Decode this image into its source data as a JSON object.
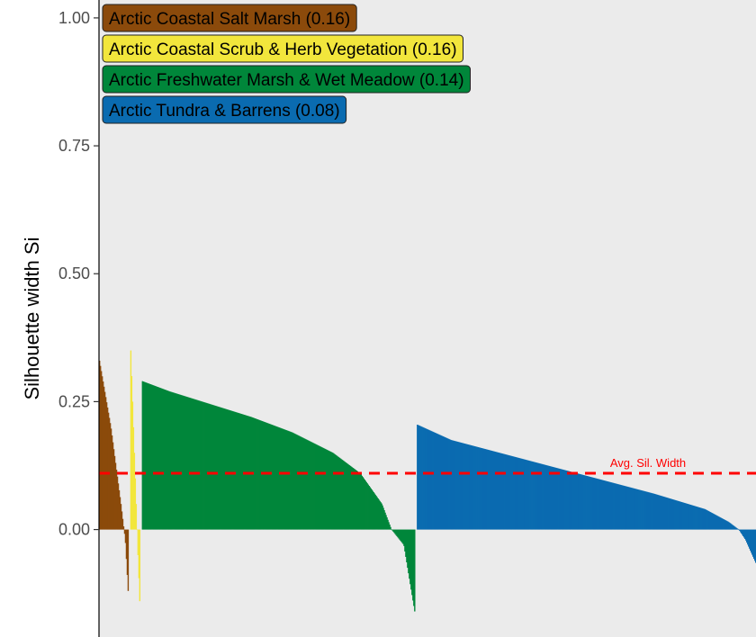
{
  "chart_data": {
    "type": "bar",
    "xlabel": "",
    "ylabel": "Silhouette width Si",
    "ylim": [
      -0.21,
      1.035
    ],
    "yticks": [
      0.0,
      0.25,
      0.5,
      0.75,
      1.0
    ],
    "ytick_labels": [
      "0.00",
      "0.25",
      "0.50",
      "0.75",
      "1.00"
    ],
    "grid": false,
    "legend_placement": "top-left",
    "reference_line": {
      "label": "Avg. Sil. Width",
      "value": 0.11,
      "color": "#ff0000",
      "style": "dashed"
    },
    "series": [
      {
        "name": "Arctic Coastal Salt Marsh (0.16)",
        "color": "#8b4a0b",
        "n": 33,
        "profile": [
          [
            0,
            0.33
          ],
          [
            0.4,
            0.2
          ],
          [
            0.75,
            0.05
          ],
          [
            0.9,
            -0.02
          ],
          [
            1,
            -0.12
          ]
        ]
      },
      {
        "name": "Arctic Coastal Scrub & Herb Vegetation (0.16)",
        "color": "#f2e63c",
        "n": 11,
        "profile": [
          [
            0,
            0.35
          ],
          [
            0.5,
            0.1
          ],
          [
            0.8,
            -0.05
          ],
          [
            1,
            -0.14
          ]
        ]
      },
      {
        "name": "Arctic Freshwater Marsh & Wet Meadow (0.14)",
        "color": "#00863a",
        "n": 306,
        "profile": [
          [
            0,
            0.29
          ],
          [
            0.1,
            0.27
          ],
          [
            0.25,
            0.245
          ],
          [
            0.4,
            0.22
          ],
          [
            0.55,
            0.19
          ],
          [
            0.7,
            0.15
          ],
          [
            0.8,
            0.11
          ],
          [
            0.88,
            0.05
          ],
          [
            0.915,
            0.0
          ],
          [
            0.96,
            -0.03
          ],
          [
            1,
            -0.16
          ]
        ]
      },
      {
        "name": "Arctic Tundra & Barrens (0.08)",
        "color": "#0a6bb0",
        "n": 380,
        "profile": [
          [
            0,
            0.205
          ],
          [
            0.1,
            0.175
          ],
          [
            0.3,
            0.14
          ],
          [
            0.5,
            0.105
          ],
          [
            0.7,
            0.07
          ],
          [
            0.85,
            0.04
          ],
          [
            0.92,
            0.015
          ],
          [
            0.95,
            0.0
          ],
          [
            0.97,
            -0.02
          ],
          [
            1,
            -0.065
          ]
        ]
      }
    ]
  }
}
